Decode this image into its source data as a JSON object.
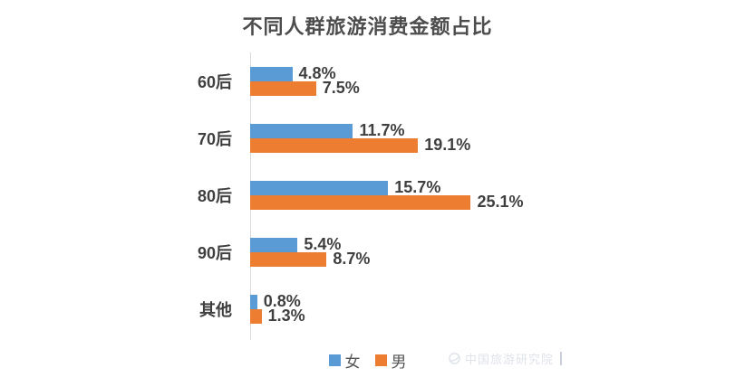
{
  "title": "不同人群旅游消费金额占比",
  "colors": {
    "female": "#5B9BD5",
    "male": "#ED7D31",
    "title_text": "#4d4d4d",
    "label_text": "#3f3f3f",
    "axis_line": "#d9d9d9",
    "watermark": "#dfe3ea"
  },
  "legend": [
    {
      "label": "女",
      "color_key": "female"
    },
    {
      "label": "男",
      "color_key": "male"
    }
  ],
  "watermark": {
    "text": "中国旅游研究院"
  },
  "chart_data": {
    "type": "bar",
    "orientation": "horizontal",
    "title": "不同人群旅游消费金额占比",
    "categories": [
      "60后",
      "70后",
      "80后",
      "90后",
      "其他"
    ],
    "series": [
      {
        "name": "女",
        "values": [
          4.8,
          11.7,
          15.7,
          5.4,
          0.8
        ]
      },
      {
        "name": "男",
        "values": [
          7.5,
          19.1,
          25.1,
          8.7,
          1.3
        ]
      }
    ],
    "value_suffix": "%",
    "value_labels_shown": true,
    "grid": false,
    "legend_position": "bottom"
  }
}
